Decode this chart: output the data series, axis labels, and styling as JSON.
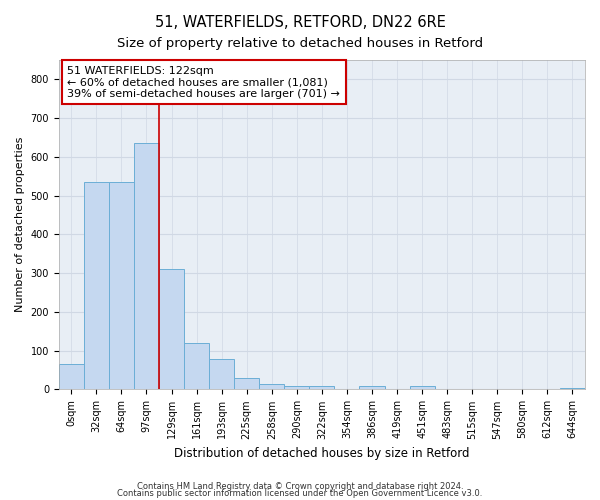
{
  "title1": "51, WATERFIELDS, RETFORD, DN22 6RE",
  "title2": "Size of property relative to detached houses in Retford",
  "xlabel": "Distribution of detached houses by size in Retford",
  "ylabel": "Number of detached properties",
  "footer1": "Contains HM Land Registry data © Crown copyright and database right 2024.",
  "footer2": "Contains public sector information licensed under the Open Government Licence v3.0.",
  "bin_labels": [
    "0sqm",
    "32sqm",
    "64sqm",
    "97sqm",
    "129sqm",
    "161sqm",
    "193sqm",
    "225sqm",
    "258sqm",
    "290sqm",
    "322sqm",
    "354sqm",
    "386sqm",
    "419sqm",
    "451sqm",
    "483sqm",
    "515sqm",
    "547sqm",
    "580sqm",
    "612sqm",
    "644sqm"
  ],
  "bar_heights": [
    65,
    535,
    535,
    635,
    310,
    120,
    78,
    30,
    14,
    10,
    10,
    0,
    8,
    0,
    8,
    0,
    0,
    0,
    0,
    0,
    5
  ],
  "bar_color": "#c5d8f0",
  "bar_edge_color": "#6baed6",
  "red_line_color": "#cc0000",
  "annotation_text": "51 WATERFIELDS: 122sqm\n← 60% of detached houses are smaller (1,081)\n39% of semi-detached houses are larger (701) →",
  "annotation_box_color": "white",
  "annotation_box_edge": "#cc0000",
  "ylim": [
    0,
    850
  ],
  "yticks": [
    0,
    100,
    200,
    300,
    400,
    500,
    600,
    700,
    800
  ],
  "background_color": "#e8eef5",
  "grid_color": "#d0d8e4",
  "title1_fontsize": 10.5,
  "title2_fontsize": 9.5,
  "xlabel_fontsize": 8.5,
  "ylabel_fontsize": 8,
  "tick_fontsize": 7,
  "annotation_fontsize": 8,
  "footer_fontsize": 6
}
